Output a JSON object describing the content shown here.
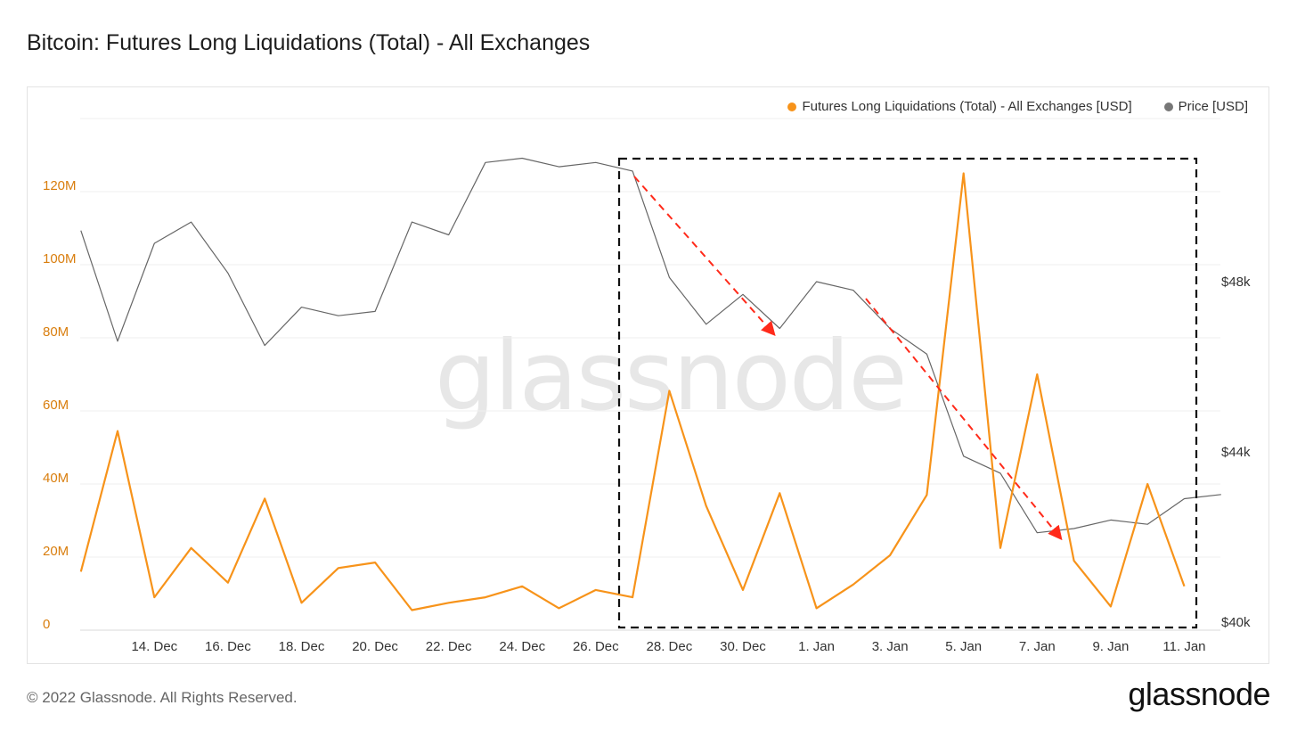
{
  "title": "Bitcoin: Futures Long Liquidations (Total) - All Exchanges",
  "footer": {
    "copyright": "© 2022 Glassnode. All Rights Reserved.",
    "logo": "glassnode"
  },
  "watermark": "glassnode",
  "colors": {
    "liquidations": "#f7931a",
    "price": "#666666",
    "arrow": "#ff2a1a",
    "box": "#111111",
    "left_axis": "#d97e0e"
  },
  "chart_data": {
    "type": "line",
    "title": "Bitcoin: Futures Long Liquidations (Total) - All Exchanges",
    "x_tick_labels": [
      "14. Dec",
      "16. Dec",
      "18. Dec",
      "20. Dec",
      "22. Dec",
      "24. Dec",
      "26. Dec",
      "28. Dec",
      "30. Dec",
      "1. Jan",
      "3. Jan",
      "5. Jan",
      "7. Jan",
      "9. Jan",
      "11. Jan"
    ],
    "x": [
      "12. Dec",
      "13. Dec",
      "14. Dec",
      "15. Dec",
      "16. Dec",
      "17. Dec",
      "18. Dec",
      "19. Dec",
      "20. Dec",
      "21. Dec",
      "22. Dec",
      "23. Dec",
      "24. Dec",
      "25. Dec",
      "26. Dec",
      "27. Dec",
      "28. Dec",
      "29. Dec",
      "30. Dec",
      "31. Dec",
      "1. Jan",
      "2. Jan",
      "3. Jan",
      "4. Jan",
      "5. Jan",
      "6. Jan",
      "7. Jan",
      "8. Jan",
      "9. Jan",
      "10. Jan",
      "11. Jan",
      "12. Jan"
    ],
    "left_axis": {
      "ticks": [
        "0",
        "20M",
        "40M",
        "60M",
        "80M",
        "100M",
        "120M"
      ],
      "ylim": [
        0,
        140000000
      ]
    },
    "right_axis": {
      "ticks": [
        "$40k",
        "$44k",
        "$48k"
      ],
      "ylim": [
        40000,
        52000
      ]
    },
    "legend_position": "top-right",
    "grid": true,
    "series": [
      {
        "name": "Futures Long Liquidations (Total) - All Exchanges [USD]",
        "axis": "left",
        "values": [
          16000000,
          54500000,
          9000000,
          22500000,
          13000000,
          36000000,
          7500000,
          17000000,
          18500000,
          5500000,
          7500000,
          9000000,
          12000000,
          6000000,
          11000000,
          9000000,
          65500000,
          34000000,
          11000000,
          37500000,
          6000000,
          12500000,
          20500000,
          37000000,
          125000000,
          22500000,
          70000000,
          19000000,
          6500000,
          40000000,
          12000000,
          null
        ]
      },
      {
        "name": "Price [USD]",
        "axis": "right",
        "values": [
          49200,
          46600,
          48900,
          49400,
          48200,
          46500,
          47400,
          47200,
          47300,
          49400,
          49100,
          50800,
          50900,
          50700,
          50800,
          50600,
          48100,
          47000,
          47700,
          46900,
          48000,
          47800,
          46900,
          46300,
          43900,
          43500,
          42100,
          42200,
          42400,
          42300,
          42900,
          43000
        ]
      }
    ],
    "annotations": [
      {
        "type": "dashed-box",
        "x_start": "27. Dec",
        "x_end": "11. Jan"
      },
      {
        "type": "dashed-arrow",
        "from": "27. Dec",
        "to": "31. Dec",
        "direction": "down"
      },
      {
        "type": "dashed-arrow",
        "from": "3. Jan",
        "to": "8. Jan",
        "direction": "down"
      }
    ]
  }
}
